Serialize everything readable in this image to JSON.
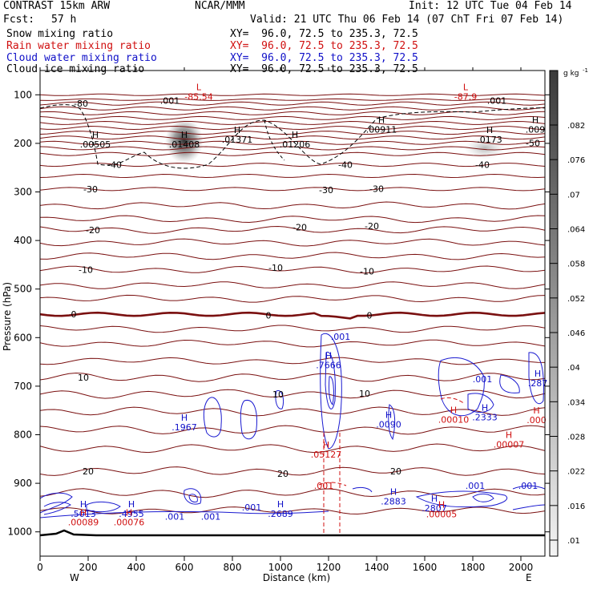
{
  "header": {
    "model": "CONTRAST 15km ARW",
    "center": "NCAR/MMM",
    "init": "Init: 12 UTC Tue 04 Feb 14",
    "fcst_label": "Fcst:",
    "fcst_value": "57 h",
    "valid": "Valid: 21 UTC Thu 06 Feb 14 (07 ChT Fri 07 Feb 14)"
  },
  "fields": [
    {
      "name": "Snow mixing ratio",
      "xy": "XY=  96.0, 72.5 to 235.3, 72.5",
      "color": "#000000"
    },
    {
      "name": "Rain water mixing ratio",
      "xy": "XY=  96.0, 72.5 to 235.3, 72.5",
      "color": "#d01010"
    },
    {
      "name": "Cloud water mixing ratio",
      "xy": "XY=  96.0, 72.5 to 235.3, 72.5",
      "color": "#1010c8"
    },
    {
      "name": "Cloud ice mixing ratio",
      "xy": "XY=  96.0, 72.5 to 235.3, 72.5",
      "color": "#000000"
    }
  ],
  "colorbar": {
    "unit_text": "g kg",
    "unit_exp": "-1",
    "labels": [
      ".082",
      ".076",
      ".07",
      ".064",
      ".058",
      ".052",
      ".046",
      ".04",
      ".034",
      ".028",
      ".022",
      ".016",
      ".01"
    ]
  },
  "chart_data": {
    "type": "contour",
    "xlabel": "Distance (km)",
    "ylabel": "Pressure (hPa)",
    "xlim": [
      0,
      2100
    ],
    "ylim": [
      1050,
      50
    ],
    "x_ticks": [
      0,
      200,
      400,
      600,
      800,
      1000,
      1200,
      1400,
      1600,
      1800,
      2000
    ],
    "y_ticks": [
      100,
      200,
      300,
      400,
      500,
      600,
      700,
      800,
      900,
      1000
    ],
    "x_end_labels": {
      "left": "W",
      "right": "E"
    },
    "temperature_labels": [
      {
        "text": "-80",
        "x": 170,
        "p": 118
      },
      {
        "text": "-50",
        "x": 2050,
        "p": 199
      },
      {
        "text": "-40",
        "x": 310,
        "p": 244
      },
      {
        "text": "-40",
        "x": 1270,
        "p": 244
      },
      {
        "text": "-40",
        "x": 1840,
        "p": 244
      },
      {
        "text": "-30",
        "x": 210,
        "p": 294
      },
      {
        "text": "-30",
        "x": 1190,
        "p": 296
      },
      {
        "text": "-30",
        "x": 1400,
        "p": 293
      },
      {
        "text": "-20",
        "x": 220,
        "p": 378
      },
      {
        "text": "-20",
        "x": 1080,
        "p": 373
      },
      {
        "text": "-20",
        "x": 1380,
        "p": 370
      },
      {
        "text": "-10",
        "x": 190,
        "p": 460
      },
      {
        "text": "-10",
        "x": 980,
        "p": 456
      },
      {
        "text": "-10",
        "x": 1360,
        "p": 463
      },
      {
        "text": "0",
        "x": 140,
        "p": 552
      },
      {
        "text": "0",
        "x": 950,
        "p": 554
      },
      {
        "text": "0",
        "x": 1370,
        "p": 554
      },
      {
        "text": "10",
        "x": 180,
        "p": 682
      },
      {
        "text": "10",
        "x": 990,
        "p": 717
      },
      {
        "text": "10",
        "x": 1350,
        "p": 715
      },
      {
        "text": "20",
        "x": 200,
        "p": 875
      },
      {
        "text": "20",
        "x": 1010,
        "p": 880
      },
      {
        "text": "20",
        "x": 1480,
        "p": 875
      }
    ],
    "extrema": [
      {
        "kind": "L",
        "value": "-85.54",
        "x": 660,
        "p": 102,
        "color": "#d01010"
      },
      {
        "kind": "L",
        "value": "-87.9",
        "x": 1770,
        "p": 102,
        "color": "#d01010"
      },
      {
        "kind": "H",
        "value": ".00505",
        "x": 230,
        "p": 200,
        "color": "#000000"
      },
      {
        "kind": "H",
        "value": ".01408",
        "x": 600,
        "p": 200,
        "color": "#000000"
      },
      {
        "kind": "H",
        "value": ".01371",
        "x": 820,
        "p": 190,
        "color": "#000000"
      },
      {
        "kind": "H",
        "value": ".01206",
        "x": 1060,
        "p": 200,
        "color": "#000000"
      },
      {
        "kind": "H",
        "value": ".00911",
        "x": 1420,
        "p": 170,
        "color": "#000000"
      },
      {
        "kind": "H",
        "value": ".0173",
        "x": 1870,
        "p": 190,
        "color": "#000000"
      },
      {
        "kind": "H",
        "value": ".009",
        "x": 2060,
        "p": 170,
        "color": "#000000"
      },
      {
        "kind": "H",
        "value": ".7666",
        "x": 1200,
        "p": 655,
        "color": "#1010c8"
      },
      {
        "kind": "H",
        "value": ".1967",
        "x": 600,
        "p": 783,
        "color": "#1010c8"
      },
      {
        "kind": "H",
        "value": ".0090",
        "x": 1450,
        "p": 777,
        "color": "#1010c8"
      },
      {
        "kind": "H",
        "value": ".2333",
        "x": 1850,
        "p": 762,
        "color": "#1010c8"
      },
      {
        "kind": "H",
        "value": ".287",
        "x": 2070,
        "p": 692,
        "color": "#1010c8"
      },
      {
        "kind": "H",
        "value": ".00010",
        "x": 1720,
        "p": 767,
        "color": "#d01010"
      },
      {
        "kind": "H",
        "value": ".000",
        "x": 2065,
        "p": 768,
        "color": "#d01010"
      },
      {
        "kind": "H",
        "value": ".00007",
        "x": 1950,
        "p": 818,
        "color": "#d01010"
      },
      {
        "kind": "H",
        "value": ".05127",
        "x": 1190,
        "p": 839,
        "color": "#d01010"
      },
      {
        "kind": "H",
        "value": ".5013",
        "x": 180,
        "p": 961,
        "color": "#1010c8"
      },
      {
        "kind": "H",
        "value": ".4955",
        "x": 380,
        "p": 961,
        "color": "#1010c8"
      },
      {
        "kind": "H",
        "value": ".2689",
        "x": 1000,
        "p": 961,
        "color": "#1010c8"
      },
      {
        "kind": "H",
        "value": ".2883",
        "x": 1470,
        "p": 935,
        "color": "#1010c8"
      },
      {
        "kind": "H",
        "value": ".2807",
        "x": 1640,
        "p": 949,
        "color": "#1010c8"
      },
      {
        "kind": "H",
        "value": ".00089",
        "x": 180,
        "p": 978,
        "color": "#d01010"
      },
      {
        "kind": "H",
        "value": ".00076",
        "x": 370,
        "p": 978,
        "color": "#d01010"
      },
      {
        "kind": "H",
        "value": ".00005",
        "x": 1670,
        "p": 962,
        "color": "#d01010"
      }
    ],
    "contour_labels": [
      {
        "text": ".001",
        "x": 540,
        "p": 112,
        "color": "#000000"
      },
      {
        "text": ".001",
        "x": 1900,
        "p": 112,
        "color": "#000000"
      },
      {
        "text": ".001",
        "x": 1250,
        "p": 598,
        "color": "#1010c8"
      },
      {
        "text": ".001",
        "x": 1840,
        "p": 685,
        "color": "#1010c8"
      },
      {
        "text": ".001",
        "x": 1180,
        "p": 905,
        "color": "#d01010"
      },
      {
        "text": ".001",
        "x": 1810,
        "p": 905,
        "color": "#1010c8"
      },
      {
        "text": ".001",
        "x": 2030,
        "p": 905,
        "color": "#1010c8"
      },
      {
        "text": ".001",
        "x": 880,
        "p": 949,
        "color": "#1010c8"
      },
      {
        "text": ".001",
        "x": 560,
        "p": 968,
        "color": "#1010c8"
      },
      {
        "text": ".001",
        "x": 710,
        "p": 968,
        "color": "#1010c8"
      }
    ],
    "shading": [
      {
        "x": 600,
        "p": 195,
        "value": 0.082
      },
      {
        "x": 1850,
        "p": 210,
        "value": 0.024
      }
    ]
  }
}
